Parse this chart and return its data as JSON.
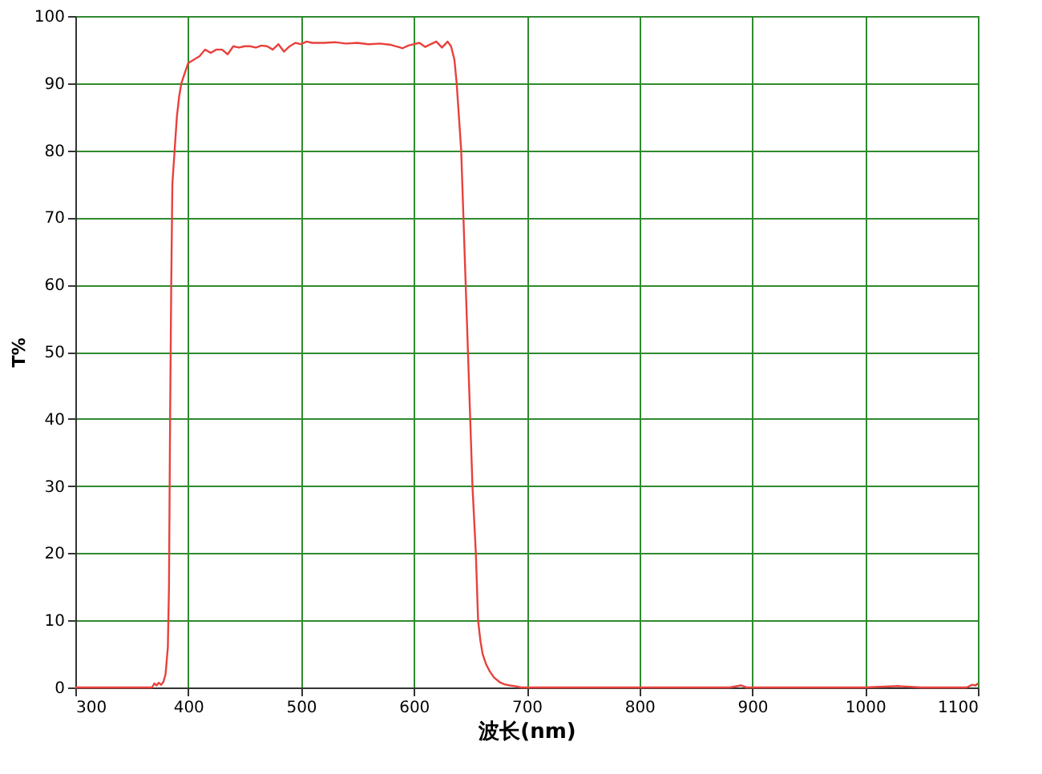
{
  "chart_data": {
    "type": "line",
    "xlabel": "波长(nm)",
    "ylabel": "T%",
    "x": [
      300,
      350,
      368,
      370,
      372,
      374,
      376,
      378,
      380,
      382,
      383,
      384,
      385,
      386,
      388,
      390,
      392,
      394,
      396,
      398,
      400,
      405,
      410,
      415,
      420,
      425,
      430,
      435,
      440,
      445,
      450,
      455,
      460,
      465,
      470,
      475,
      480,
      485,
      490,
      495,
      500,
      505,
      510,
      520,
      530,
      540,
      550,
      560,
      570,
      580,
      590,
      595,
      600,
      605,
      610,
      615,
      620,
      625,
      630,
      633,
      636,
      638,
      640,
      642,
      644,
      646,
      648,
      650,
      652,
      655,
      657,
      659,
      661,
      664,
      667,
      671,
      676,
      680,
      685,
      690,
      695,
      700,
      750,
      800,
      850,
      880,
      890,
      895,
      900,
      950,
      1000,
      1030,
      1050,
      1090,
      1095,
      1098,
      1100
    ],
    "series": [
      {
        "color": "#e8413c",
        "values": [
          0,
          0,
          0,
          0.6,
          0.3,
          0.7,
          0.4,
          0.8,
          2,
          6,
          15,
          40,
          60,
          75,
          80,
          85,
          88,
          90,
          91,
          92,
          93,
          93.5,
          94,
          95,
          94.5,
          95,
          95,
          94.3,
          95.5,
          95.3,
          95.5,
          95.5,
          95.3,
          95.6,
          95.5,
          95,
          95.8,
          94.7,
          95.5,
          96,
          95.8,
          96.2,
          96,
          96,
          96.1,
          95.9,
          96,
          95.8,
          95.9,
          95.7,
          95.2,
          95.6,
          95.8,
          96,
          95.4,
          95.8,
          96.2,
          95.3,
          96.2,
          95.5,
          93.5,
          90,
          85,
          80,
          70,
          60,
          50,
          40,
          30,
          20,
          10,
          7,
          5,
          3.5,
          2.5,
          1.5,
          0.8,
          0.5,
          0.3,
          0.2,
          0,
          0,
          0,
          0,
          0,
          0,
          0.3,
          0,
          0,
          0,
          0,
          0.2,
          0,
          0,
          0.4,
          0.3,
          0.6
        ]
      }
    ],
    "xlim": [
      300,
      1100
    ],
    "ylim": [
      0,
      100
    ],
    "xticks": [
      300,
      400,
      500,
      600,
      700,
      800,
      900,
      1000,
      1100
    ],
    "yticks": [
      0,
      10,
      20,
      30,
      40,
      50,
      60,
      70,
      80,
      90,
      100
    ],
    "grid": true
  }
}
